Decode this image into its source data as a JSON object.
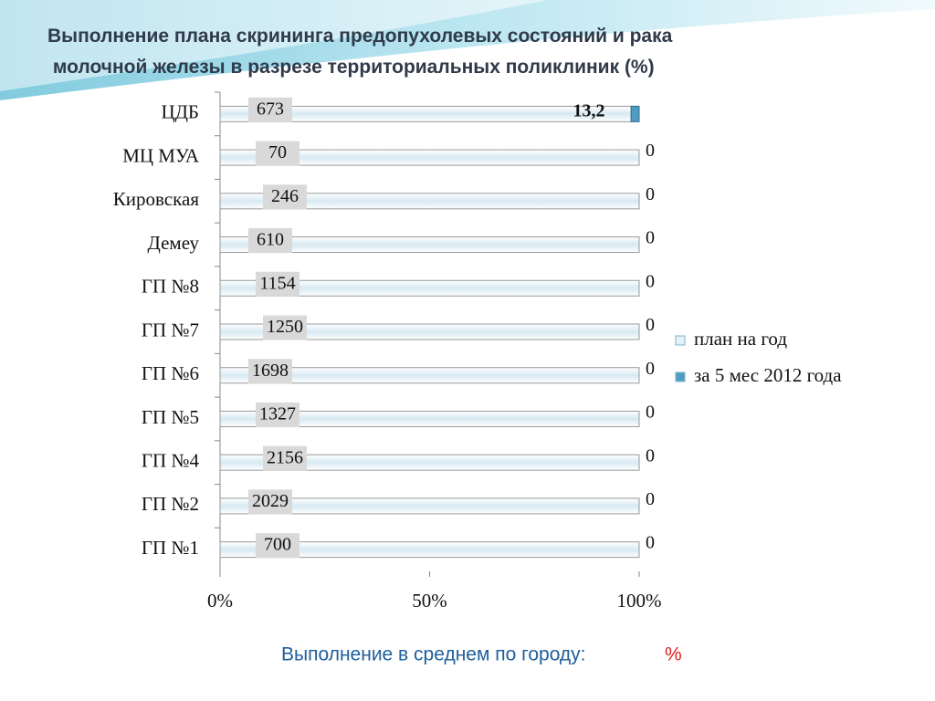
{
  "chart_data": {
    "type": "bar",
    "orientation": "horizontal",
    "stacking": "percent",
    "title": "Выполнение плана скрининга предопухолевых состояний и рака молочной железы в разрезе территориальных поликлиник (%)",
    "categories": [
      "ЦДБ",
      "МЦ МУА",
      "Кировская",
      "Демеу",
      "ГП №8",
      "ГП  №7",
      "ГП №6",
      "ГП №5",
      "ГП №4",
      "ГП №2",
      "ГП №1"
    ],
    "series": [
      {
        "name": "план на год",
        "color": "#e4f1f8",
        "values": [
          673,
          70,
          246,
          610,
          1154,
          1250,
          1698,
          1327,
          2156,
          2029,
          700
        ]
      },
      {
        "name": "за 5 мес 2012 года",
        "color": "#4f9cc4",
        "values": [
          13.2,
          0,
          0,
          0,
          0,
          0,
          0,
          0,
          0,
          0,
          0
        ],
        "value_labels": [
          "13,2",
          "0",
          "0",
          "0",
          "0",
          "0",
          "0",
          "0",
          "0",
          "0",
          "0"
        ]
      }
    ],
    "xlim": [
      0,
      100
    ],
    "xticks": [
      {
        "value": 0,
        "label": "0%"
      },
      {
        "value": 50,
        "label": "50%"
      },
      {
        "value": 100,
        "label": "100%"
      }
    ],
    "legend": "right"
  },
  "footer": {
    "text": "Выполнение в среднем по городу:",
    "unit": "%"
  }
}
